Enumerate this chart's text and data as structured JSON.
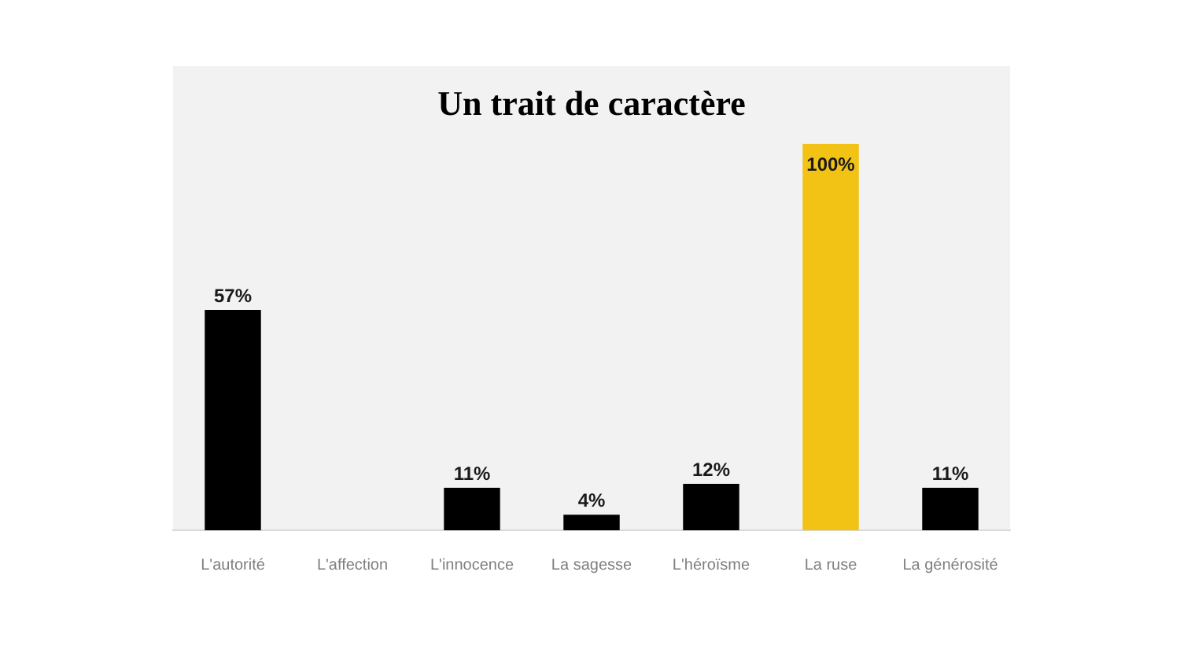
{
  "chart_data": {
    "type": "bar",
    "title": "Un trait de caractère",
    "categories": [
      "L'autorité",
      "L'affection",
      "L'innocence",
      "La sagesse",
      "L'héroïsme",
      "La ruse",
      "La générosité"
    ],
    "values": [
      57,
      0,
      11,
      4,
      12,
      100,
      11
    ],
    "colors": [
      "#000000",
      "#000000",
      "#000000",
      "#000000",
      "#000000",
      "#f2c314",
      "#000000"
    ],
    "value_labels": [
      "57%",
      null,
      "11%",
      "4%",
      "12%",
      "100%",
      "11%"
    ]
  }
}
